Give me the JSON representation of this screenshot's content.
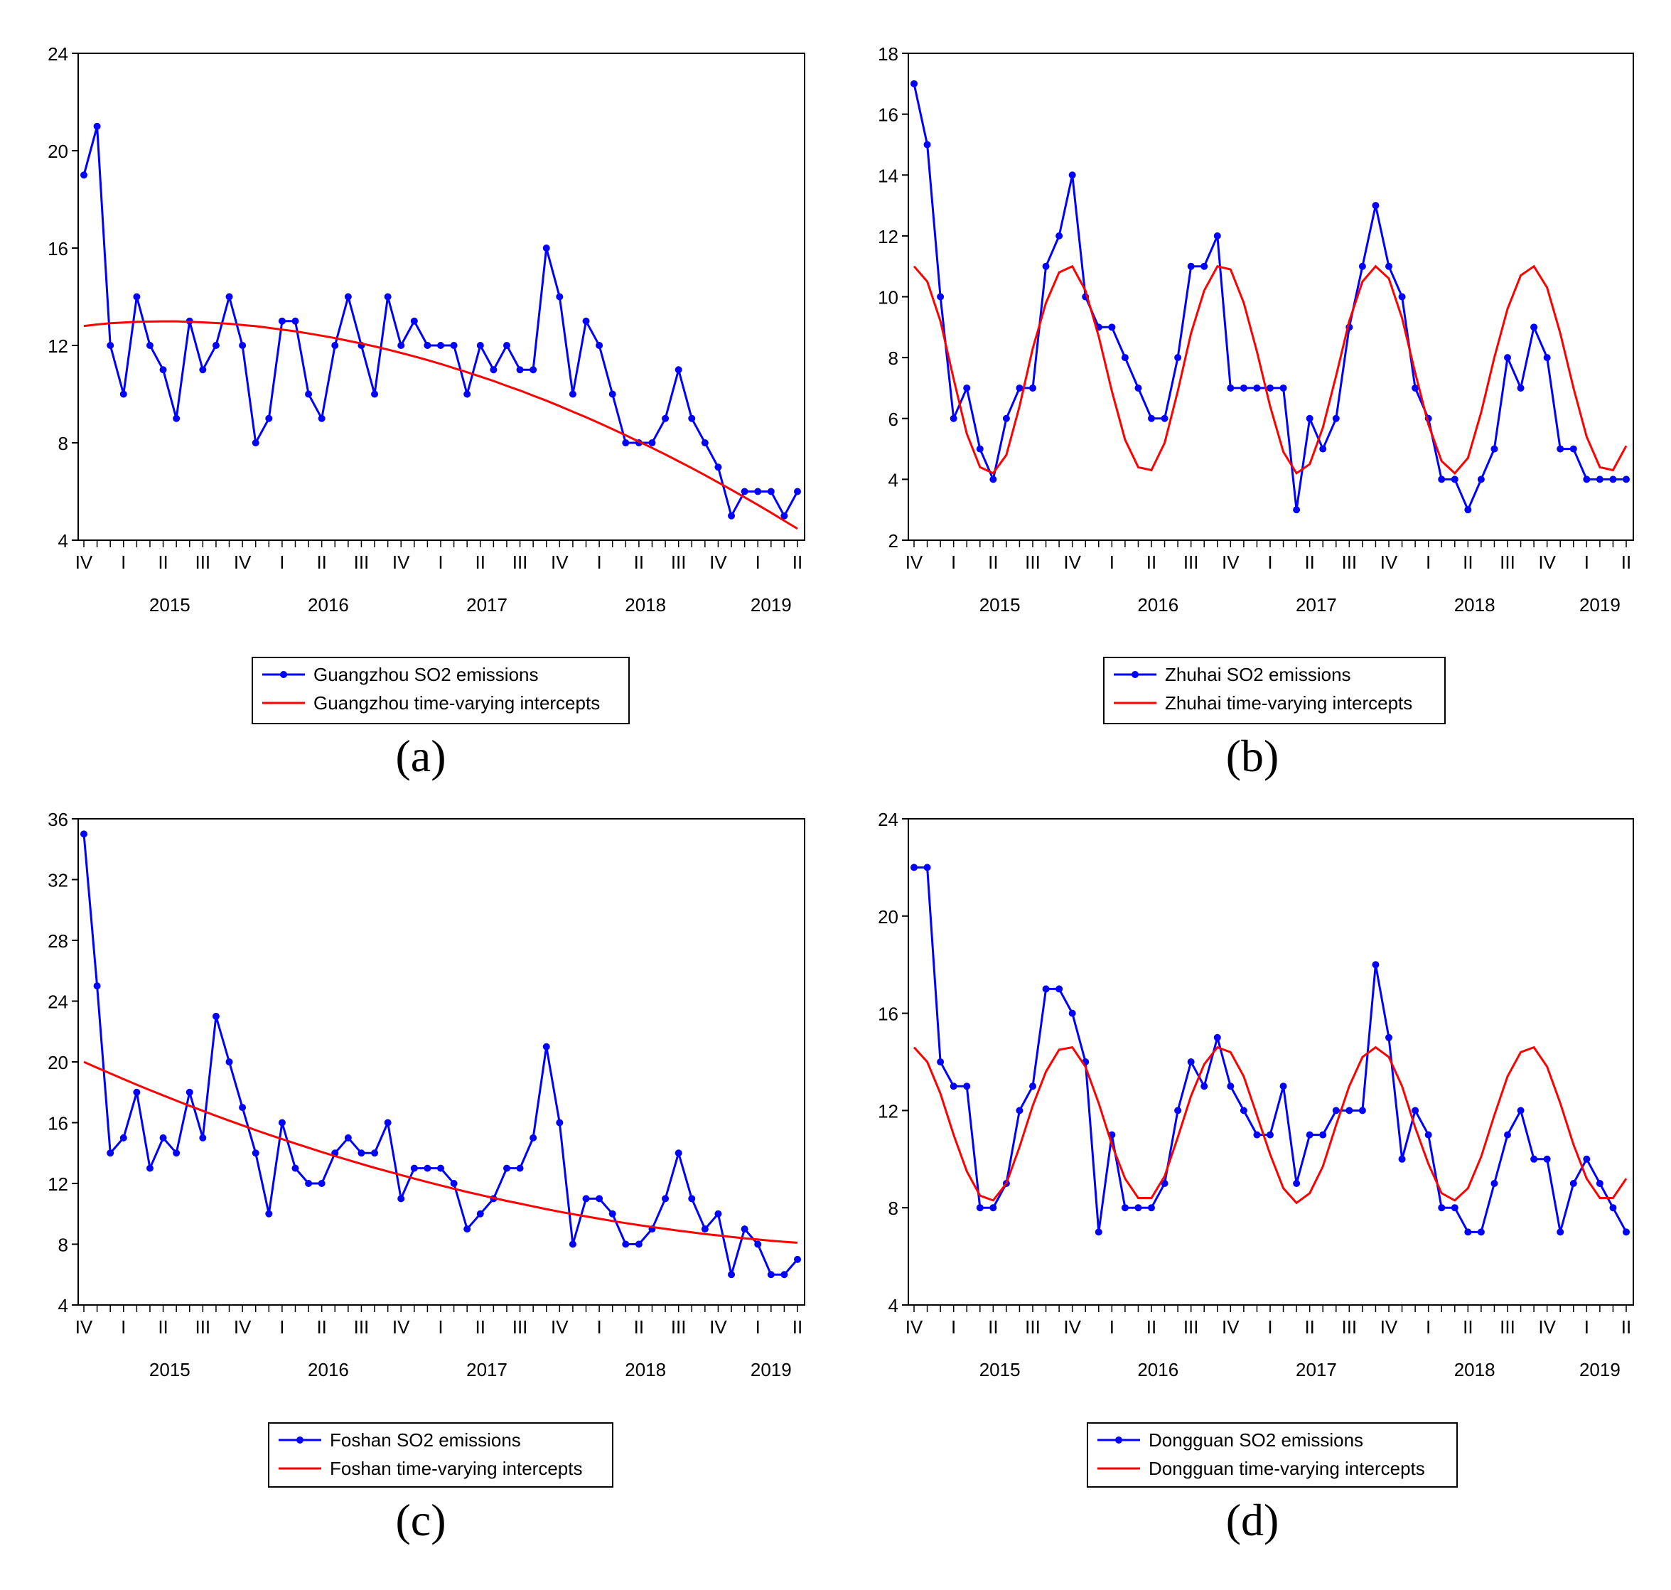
{
  "chart_data": [
    {
      "panel": "(a)",
      "type": "line",
      "ylim": [
        4,
        24
      ],
      "yticks": [
        4,
        8,
        12,
        16,
        20,
        24
      ],
      "quarter_labels": [
        "IV",
        "I",
        "II",
        "III",
        "IV",
        "I",
        "II",
        "III",
        "IV",
        "I",
        "II",
        "III",
        "IV",
        "I",
        "II",
        "III",
        "IV",
        "I",
        "II"
      ],
      "year_labels": [
        "2015",
        "2016",
        "2017",
        "2018",
        "2019"
      ],
      "series": [
        {
          "name": "Guangzhou SO2 emissions",
          "color": "#0000ff",
          "markers": true,
          "values": [
            19,
            21,
            12,
            10,
            14,
            12,
            11,
            9,
            13,
            11,
            12,
            14,
            12,
            8,
            9,
            13,
            13,
            10,
            9,
            12,
            14,
            12,
            10,
            14,
            12,
            13,
            12,
            12,
            12,
            10,
            12,
            11,
            12,
            11,
            11,
            16,
            14,
            10,
            13,
            12,
            10,
            8,
            8,
            8,
            9,
            11,
            9,
            8,
            7,
            5,
            6,
            6,
            6,
            5,
            6
          ]
        },
        {
          "name": "Guangzhou time-varying intercepts",
          "color": "#ff0000",
          "markers": false,
          "values": [
            12.8,
            12.86,
            12.91,
            12.94,
            12.97,
            12.98,
            12.99,
            12.99,
            12.97,
            12.95,
            12.92,
            12.89,
            12.84,
            12.79,
            12.72,
            12.65,
            12.58,
            12.49,
            12.4,
            12.3,
            12.19,
            12.08,
            11.96,
            11.83,
            11.69,
            11.55,
            11.4,
            11.24,
            11.07,
            10.9,
            10.72,
            10.54,
            10.34,
            10.15,
            9.94,
            9.73,
            9.51,
            9.28,
            9.05,
            8.81,
            8.56,
            8.31,
            8.05,
            7.79,
            7.52,
            7.24,
            6.96,
            6.67,
            6.37,
            6.07,
            5.76,
            5.45,
            5.13,
            4.8,
            4.47
          ]
        }
      ]
    },
    {
      "panel": "(b)",
      "type": "line",
      "ylim": [
        2,
        18
      ],
      "yticks": [
        2,
        4,
        6,
        8,
        10,
        12,
        14,
        16,
        18
      ],
      "quarter_labels": [
        "IV",
        "I",
        "II",
        "III",
        "IV",
        "I",
        "II",
        "III",
        "IV",
        "I",
        "II",
        "III",
        "IV",
        "I",
        "II",
        "III",
        "IV",
        "I",
        "II"
      ],
      "year_labels": [
        "2015",
        "2016",
        "2017",
        "2018",
        "2019"
      ],
      "series": [
        {
          "name": "Zhuhai SO2 emissions",
          "color": "#0000ff",
          "markers": true,
          "values": [
            17,
            15,
            10,
            6,
            7,
            5,
            4,
            6,
            7,
            7,
            11,
            12,
            14,
            10,
            9,
            9,
            8,
            7,
            6,
            6,
            8,
            11,
            11,
            12,
            7,
            7,
            7,
            7,
            7,
            3,
            6,
            5,
            6,
            9,
            11,
            13,
            11,
            10,
            7,
            6,
            4,
            4,
            3,
            4,
            5,
            8,
            7,
            9,
            8,
            5,
            5,
            4,
            4,
            4,
            4
          ]
        },
        {
          "name": "Zhuhai time-varying intercepts",
          "color": "#ff0000",
          "markers": false,
          "values": [
            11.0,
            10.5,
            9.2,
            7.3,
            5.5,
            4.4,
            4.2,
            4.8,
            6.4,
            8.3,
            9.8,
            10.8,
            11.0,
            10.2,
            8.7,
            6.9,
            5.3,
            4.4,
            4.3,
            5.2,
            6.9,
            8.8,
            10.2,
            11.0,
            10.9,
            9.8,
            8.2,
            6.4,
            4.9,
            4.2,
            4.5,
            5.7,
            7.4,
            9.2,
            10.5,
            11.0,
            10.6,
            9.3,
            7.5,
            5.8,
            4.6,
            4.2,
            4.7,
            6.2,
            8.0,
            9.6,
            10.7,
            11.0,
            10.3,
            8.8,
            7.0,
            5.4,
            4.4,
            4.3,
            5.1
          ]
        }
      ]
    },
    {
      "panel": "(c)",
      "type": "line",
      "ylim": [
        4,
        36
      ],
      "yticks": [
        4,
        8,
        12,
        16,
        20,
        24,
        28,
        32,
        36
      ],
      "quarter_labels": [
        "IV",
        "I",
        "II",
        "III",
        "IV",
        "I",
        "II",
        "III",
        "IV",
        "I",
        "II",
        "III",
        "IV",
        "I",
        "II",
        "III",
        "IV",
        "I",
        "II"
      ],
      "year_labels": [
        "2015",
        "2016",
        "2017",
        "2018",
        "2019"
      ],
      "series": [
        {
          "name": "Foshan SO2 emissions",
          "color": "#0000ff",
          "markers": true,
          "values": [
            35,
            25,
            14,
            15,
            18,
            13,
            15,
            14,
            18,
            15,
            23,
            20,
            17,
            14,
            10,
            16,
            13,
            12,
            12,
            14,
            15,
            14,
            14,
            16,
            11,
            13,
            13,
            13,
            12,
            9,
            10,
            11,
            13,
            13,
            15,
            21,
            16,
            8,
            11,
            11,
            10,
            8,
            8,
            9,
            11,
            14,
            11,
            9,
            10,
            6,
            9,
            8,
            6,
            6,
            7
          ]
        },
        {
          "name": "Foshan time-varying intercepts",
          "color": "#ff0000",
          "markers": false,
          "values": [
            20.0,
            19.61,
            19.24,
            18.87,
            18.5,
            18.14,
            17.79,
            17.45,
            17.11,
            16.78,
            16.45,
            16.13,
            15.82,
            15.51,
            15.21,
            14.92,
            14.63,
            14.35,
            14.07,
            13.8,
            13.54,
            13.28,
            13.03,
            12.79,
            12.55,
            12.32,
            12.09,
            11.87,
            11.65,
            11.44,
            11.24,
            11.04,
            10.85,
            10.67,
            10.49,
            10.31,
            10.14,
            9.98,
            9.83,
            9.68,
            9.53,
            9.39,
            9.26,
            9.13,
            9.01,
            8.89,
            8.78,
            8.67,
            8.58,
            8.48,
            8.39,
            8.31,
            8.23,
            8.16,
            8.1
          ]
        }
      ]
    },
    {
      "panel": "(d)",
      "type": "line",
      "ylim": [
        4,
        24
      ],
      "yticks": [
        4,
        8,
        12,
        16,
        20,
        24
      ],
      "quarter_labels": [
        "IV",
        "I",
        "II",
        "III",
        "IV",
        "I",
        "II",
        "III",
        "IV",
        "I",
        "II",
        "III",
        "IV",
        "I",
        "II",
        "III",
        "IV",
        "I",
        "II"
      ],
      "year_labels": [
        "2015",
        "2016",
        "2017",
        "2018",
        "2019"
      ],
      "series": [
        {
          "name": "Dongguan SO2 emissions",
          "color": "#0000ff",
          "markers": true,
          "values": [
            22,
            22,
            14,
            13,
            13,
            8,
            8,
            9,
            12,
            13,
            17,
            17,
            16,
            14,
            7,
            11,
            8,
            8,
            8,
            9,
            12,
            14,
            13,
            15,
            13,
            12,
            11,
            11,
            13,
            9,
            11,
            11,
            12,
            12,
            12,
            18,
            15,
            10,
            12,
            11,
            8,
            8,
            7,
            7,
            9,
            11,
            12,
            10,
            10,
            7,
            9,
            10,
            9,
            8,
            7
          ]
        },
        {
          "name": "Dongguan time-varying intercepts",
          "color": "#ff0000",
          "markers": false,
          "values": [
            14.6,
            14.0,
            12.7,
            11.0,
            9.5,
            8.5,
            8.3,
            9.0,
            10.5,
            12.2,
            13.6,
            14.5,
            14.6,
            13.8,
            12.3,
            10.6,
            9.2,
            8.4,
            8.4,
            9.3,
            10.9,
            12.6,
            13.9,
            14.6,
            14.4,
            13.4,
            11.8,
            10.2,
            8.8,
            8.2,
            8.6,
            9.7,
            11.4,
            13.0,
            14.2,
            14.6,
            14.2,
            13.0,
            11.3,
            9.8,
            8.6,
            8.3,
            8.8,
            10.1,
            11.8,
            13.4,
            14.4,
            14.6,
            13.8,
            12.3,
            10.6,
            9.2,
            8.4,
            8.4,
            9.2
          ]
        }
      ]
    }
  ]
}
